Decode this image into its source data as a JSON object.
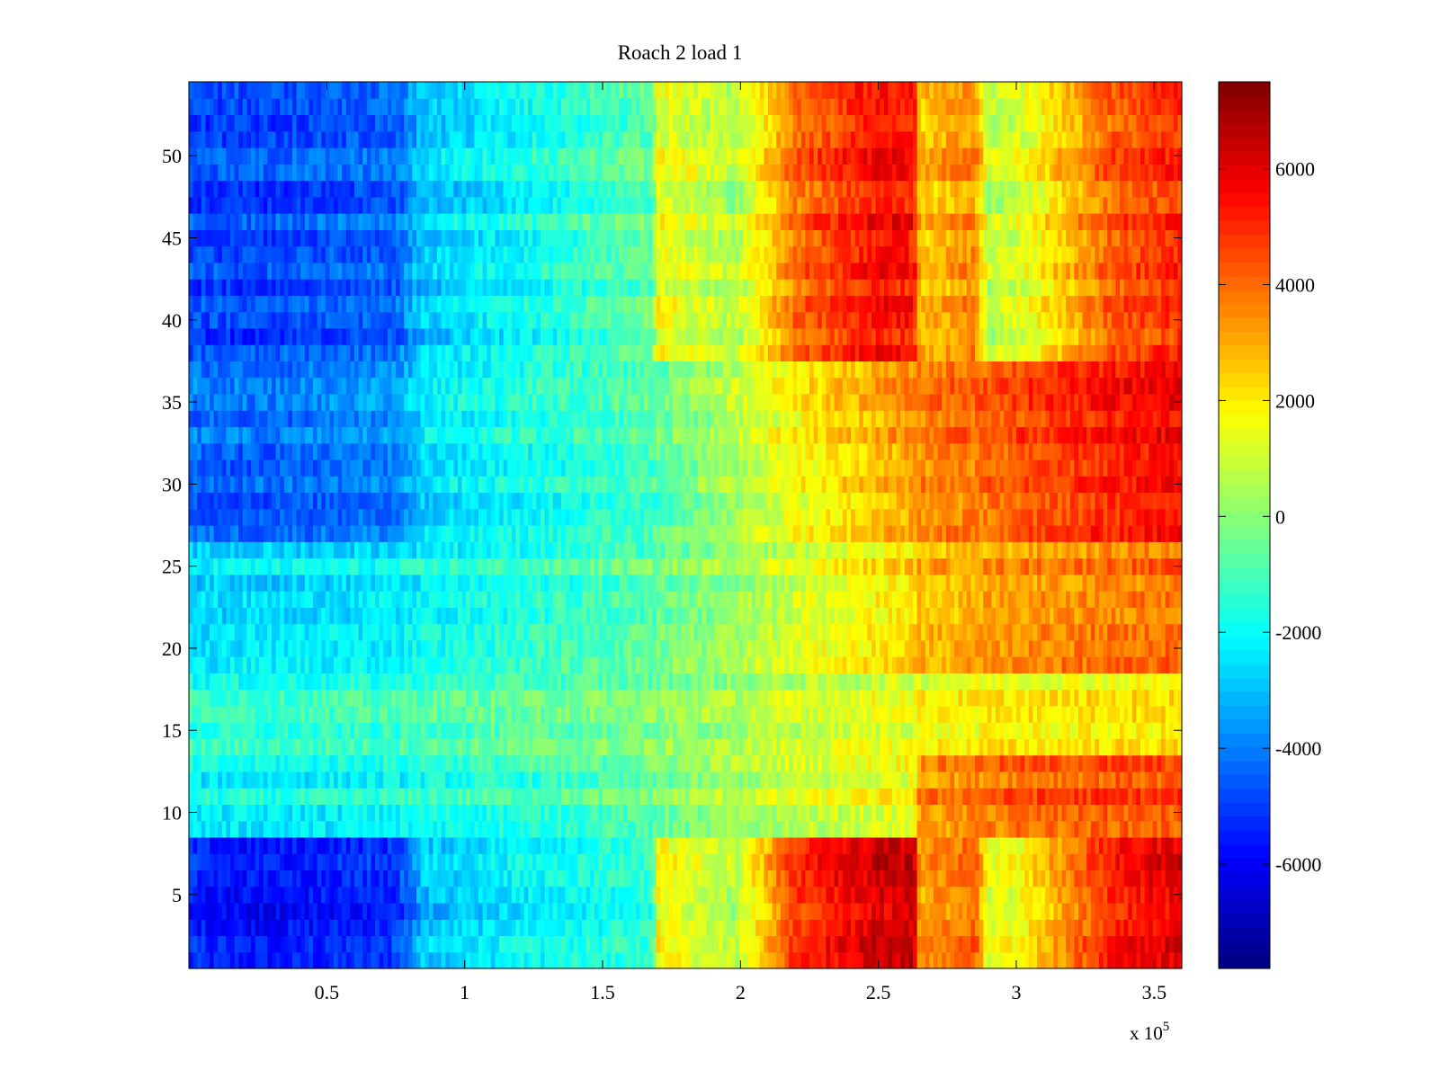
{
  "chart_data": {
    "type": "heatmap",
    "title": "Roach 2 load 1",
    "xlabel": "",
    "ylabel": "",
    "x_multiplier_label": "x 10",
    "x_multiplier_exponent": "5",
    "xlim": [
      0,
      3.6
    ],
    "ylim": [
      0.5,
      54.5
    ],
    "x_ticks": [
      0.5,
      1,
      1.5,
      2,
      2.5,
      3,
      3.5
    ],
    "x_tick_labels": [
      "0.5",
      "1",
      "1.5",
      "2",
      "2.5",
      "3",
      "3.5"
    ],
    "y_ticks": [
      5,
      10,
      15,
      20,
      25,
      30,
      35,
      40,
      45,
      50
    ],
    "y_tick_labels": [
      "5",
      "10",
      "15",
      "20",
      "25",
      "30",
      "35",
      "40",
      "45",
      "50"
    ],
    "colormap": "jet",
    "clim": [
      -7800,
      7500
    ],
    "colorbar_ticks": [
      -6000,
      -4000,
      -2000,
      0,
      2000,
      4000,
      6000
    ],
    "colorbar_tick_labels": [
      "-6000",
      "-4000",
      "-2000",
      "0",
      "2000",
      "4000",
      "6000"
    ],
    "x_profile_points": [
      0,
      0.25,
      0.75,
      0.85,
      1.2,
      1.68,
      1.7,
      1.98,
      2.2,
      2.5,
      2.63,
      2.65,
      2.85,
      2.9,
      3.0,
      3.35,
      3.6
    ],
    "row_profiles": [
      {
        "rows": [
          1,
          8
        ],
        "values": [
          -5500,
          -5800,
          -5200,
          -3000,
          -2200,
          -1500,
          1800,
          500,
          4800,
          6200,
          6300,
          3000,
          4200,
          1200,
          1500,
          5200,
          6000
        ]
      },
      {
        "rows": [
          9,
          13
        ],
        "values": [
          -2000,
          -2000,
          -1800,
          -1500,
          -1200,
          -500,
          -200,
          500,
          1000,
          1500,
          1800,
          3500,
          3800,
          4000,
          4200,
          4500,
          4500
        ]
      },
      {
        "rows": [
          14,
          18
        ],
        "values": [
          -1500,
          -1500,
          -1300,
          -1000,
          -800,
          -300,
          -100,
          300,
          800,
          1200,
          1400,
          1600,
          1700,
          1800,
          1800,
          1900,
          2000
        ]
      },
      {
        "rows": [
          19,
          26
        ],
        "values": [
          -2500,
          -2400,
          -2200,
          -1900,
          -1400,
          -600,
          -400,
          400,
          1200,
          2000,
          2400,
          2800,
          3000,
          3200,
          3400,
          3800,
          4000
        ]
      },
      {
        "rows": [
          27,
          37
        ],
        "values": [
          -4200,
          -4400,
          -3800,
          -2500,
          -1800,
          -900,
          -700,
          600,
          1800,
          2800,
          3300,
          3600,
          3900,
          4100,
          4400,
          5200,
          5600
        ]
      },
      {
        "rows": [
          38,
          54
        ],
        "values": [
          -4800,
          -4800,
          -4300,
          -2800,
          -1900,
          -500,
          1600,
          600,
          4000,
          5500,
          5300,
          2600,
          3600,
          800,
          1100,
          4300,
          5000
        ]
      }
    ]
  }
}
